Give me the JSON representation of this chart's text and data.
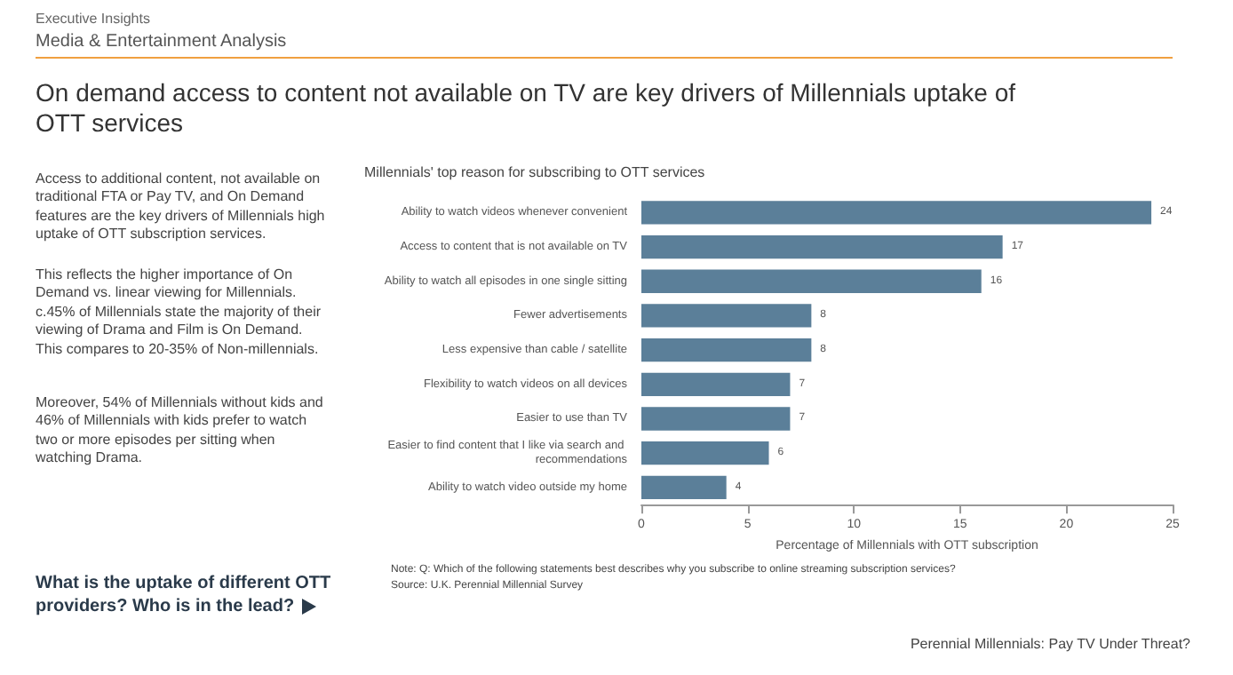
{
  "chart_data": {
    "type": "bar",
    "orientation": "horizontal",
    "title": "On demand access to content not available on TV are key drivers of Millennials uptake of OTT services",
    "subtitle": "Millennials' top reason for subscribing to OTT services",
    "categories": [
      "Ability to watch videos whenever convenient",
      "Access to content that is not available on TV",
      "Ability to watch all episodes in one single sitting",
      "Fewer advertisements",
      "Less expensive than cable / satellite",
      "Flexibility to watch videos on all devices",
      "Easier to use than TV",
      "Easier to find content that I like via search and recommendations",
      "Ability to watch video outside my home"
    ],
    "values": [
      24,
      17,
      16,
      8,
      8,
      7,
      7,
      6,
      4
    ],
    "color": "#5b7f99",
    "data_labels": true,
    "xlabel": "Percentage of Millennials with OTT subscription",
    "xlim": [
      0,
      25
    ],
    "xticks": [
      0,
      5,
      10,
      15,
      20,
      25
    ],
    "annotations": [
      "Executive Insights",
      "Media & Entertainment Analysis",
      "Access to additional content, not available on traditional FTA or Pay TV, and On Demand features are the key drivers of Millennials high uptake of OTT subscription services.",
      "This reflects the higher importance of On Demand vs. linear viewing for Millennials. c.45% of Millennials state the majority of their viewing of Drama and Film is On Demand. This compares to 20-35% of Non-millennials.",
      "Moreover, 54% of Millennials without kids and 46% of Millennials with kids prefer to watch two or more episodes per sitting when watching Drama.",
      "What is the uptake of different OTT providers? Who is in the lead?",
      "Note: Q: Which of the following statements best describes why you subscribe to online streaming subscription services?",
      "Source: U.K. Perennial Millennial Survey",
      "Perennial Millennials: Pay TV Under Threat?"
    ]
  }
}
